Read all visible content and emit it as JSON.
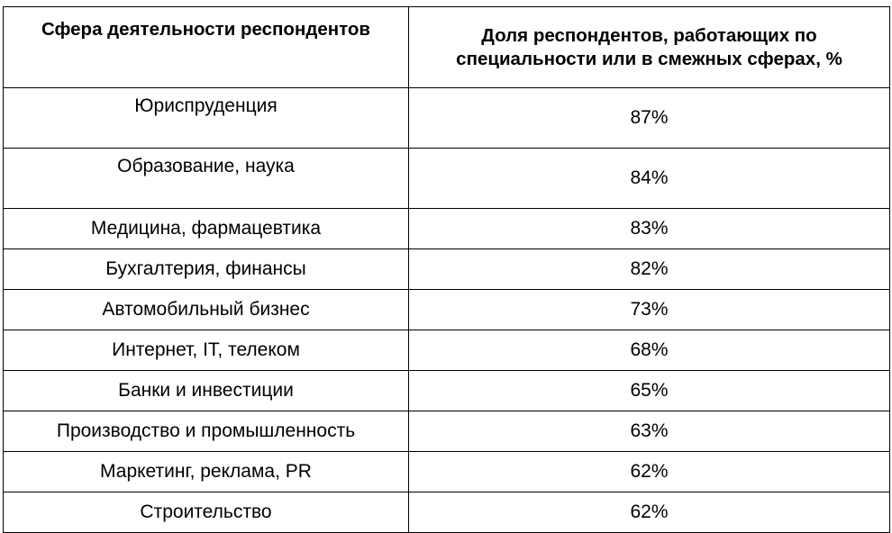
{
  "table": {
    "headers": [
      "Сфера деятельности респондентов",
      "Доля респондентов, работающих по специальности или в смежных сферах, %"
    ],
    "rows": [
      {
        "sphere": "Юриспруденция",
        "share": "87%"
      },
      {
        "sphere": "Образование, наука",
        "share": "84%"
      },
      {
        "sphere": "Медицина, фармацевтика",
        "share": "83%"
      },
      {
        "sphere": "Бухгалтерия, финансы",
        "share": "82%"
      },
      {
        "sphere": "Автомобильный бизнес",
        "share": "73%"
      },
      {
        "sphere": "Интернет, IT, телеком",
        "share": "68%"
      },
      {
        "sphere": "Банки и инвестиции",
        "share": "65%"
      },
      {
        "sphere": "Производство и промышленность",
        "share": "63%"
      },
      {
        "sphere": "Маркетинг, реклама, PR",
        "share": "62%"
      },
      {
        "sphere": "Строительство",
        "share": "62%"
      }
    ]
  }
}
